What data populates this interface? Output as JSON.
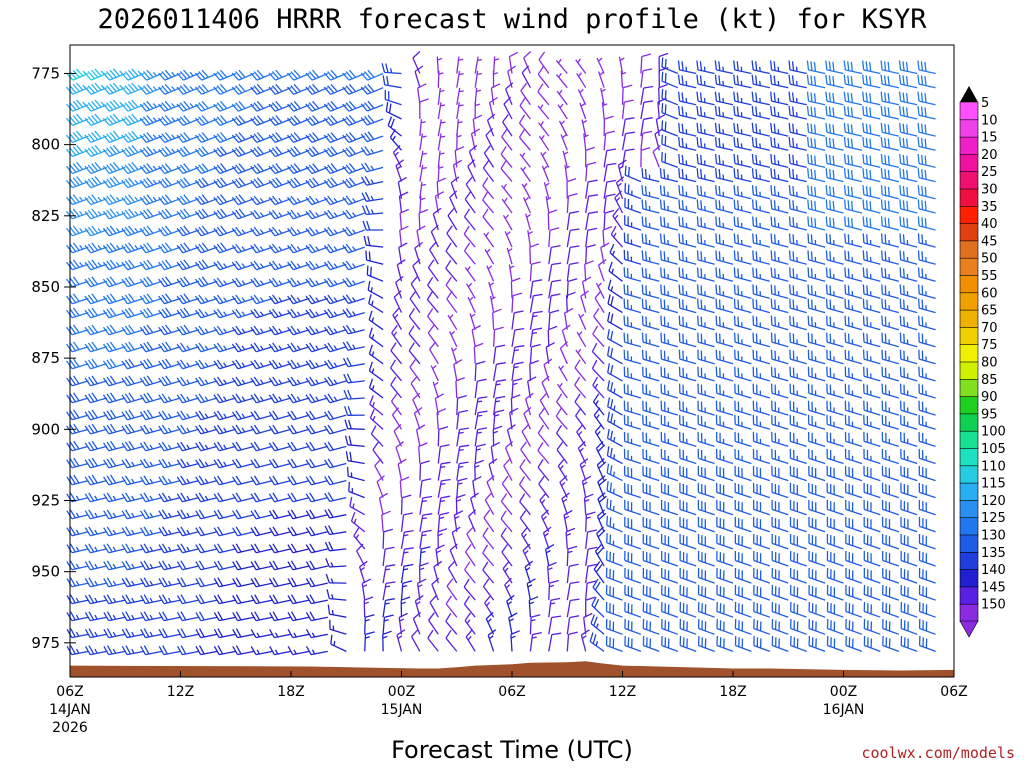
{
  "chart_data": {
    "type": "wind-barb-time-height",
    "title": "2026011406 HRRR forecast wind profile (kt) for KSYR",
    "xlabel": "Forecast Time (UTC)",
    "credit": "coolwx.com/models",
    "y_axis": {
      "unit": "hPa",
      "ylim_top": 765,
      "ylim_bottom": 987,
      "ticks": [
        775,
        800,
        825,
        850,
        875,
        900,
        925,
        950,
        975
      ]
    },
    "x_axis": {
      "unit": "hours since 2026-01-14 06Z",
      "xlim": [
        0,
        48
      ],
      "ticks": [
        {
          "hour": 0,
          "label": "06Z",
          "date": "14JAN",
          "year": "2026"
        },
        {
          "hour": 6,
          "label": "12Z"
        },
        {
          "hour": 12,
          "label": "18Z"
        },
        {
          "hour": 18,
          "label": "00Z",
          "date": "15JAN"
        },
        {
          "hour": 24,
          "label": "06Z"
        },
        {
          "hour": 30,
          "label": "12Z"
        },
        {
          "hour": 36,
          "label": "18Z"
        },
        {
          "hour": 42,
          "label": "00Z",
          "date": "16JAN"
        },
        {
          "hour": 48,
          "label": "06Z"
        }
      ]
    },
    "colorbar": {
      "unit": "kt",
      "levels": [
        5,
        10,
        15,
        20,
        25,
        30,
        35,
        40,
        45,
        50,
        55,
        60,
        65,
        70,
        75,
        80,
        85,
        90,
        95,
        100,
        105,
        110,
        115,
        120,
        125,
        130,
        135,
        140,
        145,
        150
      ],
      "colors": [
        "#8a2be2",
        "#5a1fe0",
        "#2020d0",
        "#1e3fdc",
        "#1f5ce6",
        "#2277ee",
        "#2a90f0",
        "#29aef2",
        "#26cce0",
        "#1fe0c0",
        "#17e090",
        "#10d050",
        "#20d020",
        "#80e020",
        "#d0f000",
        "#f0f000",
        "#f0d000",
        "#f0b000",
        "#f0a000",
        "#f09000",
        "#e88020",
        "#e07020",
        "#e04010",
        "#ff2000",
        "#f01040",
        "#f01070",
        "#f010a0",
        "#f020c8",
        "#f040e8",
        "#ff50ff"
      ]
    },
    "surface_pressure_hpa": [
      {
        "hour": 0,
        "p": 983
      },
      {
        "hour": 13,
        "p": 983.3
      },
      {
        "hour": 17,
        "p": 983.8
      },
      {
        "hour": 19,
        "p": 984
      },
      {
        "hour": 20,
        "p": 984
      },
      {
        "hour": 21,
        "p": 983.6
      },
      {
        "hour": 22,
        "p": 983
      },
      {
        "hour": 24,
        "p": 982.5
      },
      {
        "hour": 25,
        "p": 982
      },
      {
        "hour": 27,
        "p": 981.8
      },
      {
        "hour": 28,
        "p": 981.5
      },
      {
        "hour": 29,
        "p": 982.3
      },
      {
        "hour": 30,
        "p": 983
      },
      {
        "hour": 33,
        "p": 983.5
      },
      {
        "hour": 36,
        "p": 984
      },
      {
        "hour": 38,
        "p": 984
      },
      {
        "hour": 42,
        "p": 984.5
      },
      {
        "hour": 45,
        "p": 984.7
      },
      {
        "hour": 48,
        "p": 984.5
      }
    ],
    "barb_levels_hpa": [
      775,
      780,
      786,
      791,
      797,
      802,
      808,
      813,
      819,
      824,
      830,
      836,
      842,
      848,
      854,
      859,
      865,
      871,
      877,
      883,
      889,
      895,
      900,
      906,
      912,
      918,
      924,
      930,
      936,
      942,
      948,
      954,
      960,
      966,
      972,
      978
    ],
    "barb_times_h": [
      1,
      2,
      3,
      4,
      5,
      6,
      7,
      8,
      9,
      10,
      11,
      12,
      13,
      14,
      15,
      16,
      17,
      18,
      19,
      20,
      21,
      22,
      23,
      24,
      25,
      26,
      27,
      28,
      29,
      30,
      31,
      32,
      33,
      34,
      35,
      36,
      37,
      38,
      39,
      40,
      41,
      42,
      43,
      44,
      45,
      46,
      47
    ],
    "wind_phases": [
      {
        "hours": "1-4",
        "direction": "WSW",
        "speed_kt": "35-45"
      },
      {
        "hours": "5-16",
        "direction": "WSW",
        "speed_kt": "20-35"
      },
      {
        "hours": "17-29",
        "direction": "N to NW (light)",
        "speed_kt": "5-15"
      },
      {
        "hours": "30-47",
        "direction": "WNW",
        "speed_kt": "20-35"
      }
    ]
  }
}
